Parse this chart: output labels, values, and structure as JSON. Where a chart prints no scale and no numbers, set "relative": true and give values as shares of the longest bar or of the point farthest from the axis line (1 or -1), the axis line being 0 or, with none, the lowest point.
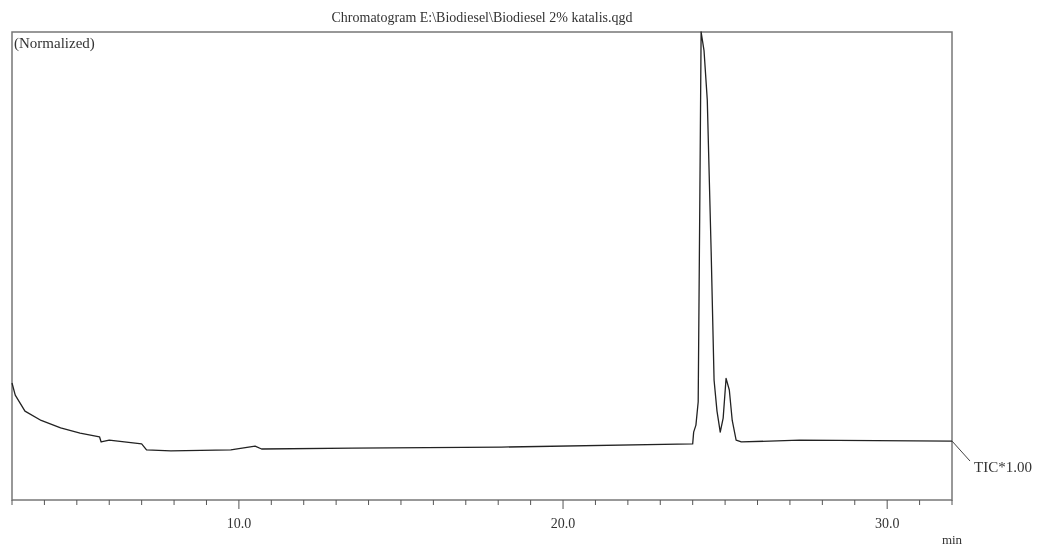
{
  "chart_data": {
    "type": "line",
    "title": "Chromatogram  E:\\Biodiesel\\Biodiesel 2% katalis.qgd",
    "xlabel": "min",
    "ylabel": "(Normalized)",
    "relative": true,
    "xlim": [
      3.0,
      32.0
    ],
    "xticks": [
      {
        "value": 3,
        "label": null
      },
      {
        "value": 4,
        "label": null
      },
      {
        "value": 5,
        "label": null
      },
      {
        "value": 6,
        "label": null
      },
      {
        "value": 7,
        "label": null
      },
      {
        "value": 8,
        "label": null
      },
      {
        "value": 9,
        "label": null
      },
      {
        "value": 10,
        "label": "10.0"
      },
      {
        "value": 11,
        "label": null
      },
      {
        "value": 12,
        "label": null
      },
      {
        "value": 13,
        "label": null
      },
      {
        "value": 14,
        "label": null
      },
      {
        "value": 15,
        "label": null
      },
      {
        "value": 16,
        "label": null
      },
      {
        "value": 17,
        "label": null
      },
      {
        "value": 18,
        "label": null
      },
      {
        "value": 19,
        "label": null
      },
      {
        "value": 20,
        "label": "20.0"
      },
      {
        "value": 21,
        "label": null
      },
      {
        "value": 22,
        "label": null
      },
      {
        "value": 23,
        "label": null
      },
      {
        "value": 24,
        "label": null
      },
      {
        "value": 25,
        "label": null
      },
      {
        "value": 26,
        "label": null
      },
      {
        "value": 27,
        "label": null
      },
      {
        "value": 28,
        "label": null
      },
      {
        "value": 29,
        "label": null
      },
      {
        "value": 30,
        "label": "30.0"
      },
      {
        "value": 31,
        "label": null
      },
      {
        "value": 32,
        "label": null
      }
    ],
    "grid": false,
    "marker": "none",
    "line_style": "solid",
    "series": [
      {
        "name": "TIC*1.00",
        "color": "#222222",
        "x": [
          3.0,
          3.1,
          3.4,
          3.9,
          4.5,
          5.1,
          5.7,
          5.75,
          6.0,
          7.0,
          7.15,
          7.9,
          9.75,
          10.5,
          10.7,
          13.5,
          18.1,
          24.0,
          24.03,
          24.1,
          24.17,
          24.22,
          24.26,
          24.35,
          24.45,
          24.57,
          24.66,
          24.75,
          24.85,
          24.94,
          25.03,
          25.13,
          25.22,
          25.34,
          25.5,
          27.3,
          32.0
        ],
        "values": [
          0.25,
          0.224,
          0.19,
          0.17,
          0.154,
          0.143,
          0.135,
          0.124,
          0.128,
          0.12,
          0.107,
          0.105,
          0.107,
          0.115,
          0.109,
          0.111,
          0.113,
          0.12,
          0.145,
          0.16,
          0.21,
          0.64,
          1.0,
          0.96,
          0.855,
          0.53,
          0.256,
          0.19,
          0.145,
          0.175,
          0.26,
          0.235,
          0.17,
          0.128,
          0.124,
          0.128,
          0.126
        ]
      }
    ]
  }
}
